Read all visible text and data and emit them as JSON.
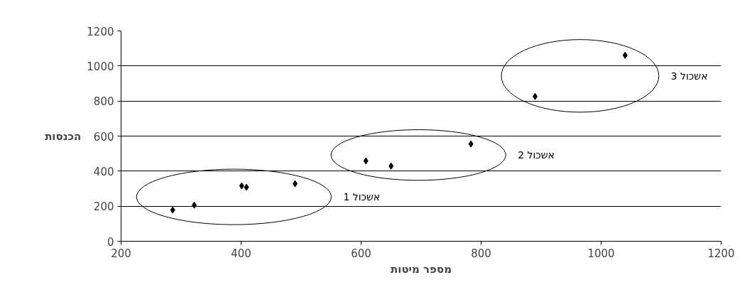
{
  "chart_data": {
    "type": "scatter",
    "xlabel": "מספר מיטות",
    "ylabel": "הכנסות",
    "series": [
      {
        "color": "#000000",
        "x": [
          286,
          322,
          401,
          409,
          490
        ],
        "values": [
          178,
          206,
          316,
          308,
          328
        ]
      },
      {
        "color": "#000000",
        "x": [
          608,
          650,
          783
        ],
        "values": [
          458,
          429,
          555
        ]
      },
      {
        "color": "#000000",
        "x": [
          890,
          1040
        ],
        "values": [
          826,
          1061
        ]
      }
    ],
    "annotations": [
      "אשכול 1",
      "אשכול 2",
      "אשכול 3"
    ],
    "xlim": [
      200,
      1200
    ],
    "xticks": [
      200,
      400,
      600,
      800,
      1000,
      1200
    ],
    "ylim": [
      0,
      1200
    ],
    "yticks": [
      0,
      200,
      400,
      600,
      800,
      1000,
      1200
    ],
    "grid": "y",
    "marker": "diamond"
  }
}
